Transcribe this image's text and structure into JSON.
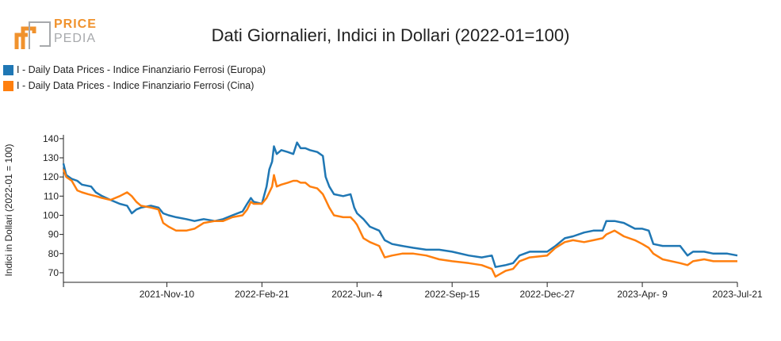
{
  "logo": {
    "line1": "PRICE",
    "line2": "PEDIA",
    "color_orange": "#f0922d",
    "color_gray": "#a7a9ac"
  },
  "chart_data": {
    "type": "line",
    "title": "Dati Giornalieri, Indici in Dollari (2022-01=100)",
    "xlabel": "",
    "ylabel": "Indici in Dollari (2022-01 = 100)",
    "ylim": [
      65,
      142
    ],
    "yticks": [
      70,
      80,
      90,
      100,
      110,
      120,
      130,
      140
    ],
    "xrange": [
      "2021-07-21",
      "2023-07-21"
    ],
    "xticks": [
      "2021-Nov-10",
      "2022-Feb-21",
      "2022-Jun- 4",
      "2022-Sep-15",
      "2022-Dec-27",
      "2023-Apr- 9",
      "2023-Jul-21"
    ],
    "xtick_dates": [
      "2021-11-10",
      "2022-02-21",
      "2022-06-04",
      "2022-09-15",
      "2022-12-27",
      "2023-04-09",
      "2023-07-21"
    ],
    "grid": false,
    "legend_position": "top-left",
    "series": [
      {
        "name": "I - Daily Data Prices - Indice Finanziario Ferrosi (Europa)",
        "color": "#1f77b4",
        "points": [
          [
            "2021-07-21",
            127
          ],
          [
            "2021-07-24",
            121
          ],
          [
            "2021-07-30",
            119
          ],
          [
            "2021-08-05",
            118
          ],
          [
            "2021-08-10",
            116
          ],
          [
            "2021-08-20",
            115
          ],
          [
            "2021-08-25",
            112
          ],
          [
            "2021-09-01",
            110
          ],
          [
            "2021-09-10",
            108
          ],
          [
            "2021-09-20",
            106
          ],
          [
            "2021-09-28",
            105
          ],
          [
            "2021-10-03",
            101
          ],
          [
            "2021-10-08",
            103
          ],
          [
            "2021-10-13",
            104
          ],
          [
            "2021-10-24",
            105
          ],
          [
            "2021-11-01",
            104
          ],
          [
            "2021-11-06",
            101
          ],
          [
            "2021-11-12",
            100
          ],
          [
            "2021-11-20",
            99
          ],
          [
            "2021-12-01",
            98
          ],
          [
            "2021-12-10",
            97
          ],
          [
            "2021-12-20",
            98
          ],
          [
            "2022-01-01",
            97
          ],
          [
            "2022-01-10",
            98
          ],
          [
            "2022-01-20",
            100
          ],
          [
            "2022-01-31",
            102
          ],
          [
            "2022-02-05",
            106
          ],
          [
            "2022-02-09",
            109
          ],
          [
            "2022-02-12",
            107
          ],
          [
            "2022-02-21",
            106
          ],
          [
            "2022-02-26",
            115
          ],
          [
            "2022-03-01",
            124
          ],
          [
            "2022-03-04",
            128
          ],
          [
            "2022-03-06",
            136
          ],
          [
            "2022-03-09",
            132
          ],
          [
            "2022-03-14",
            134
          ],
          [
            "2022-03-21",
            133
          ],
          [
            "2022-03-27",
            132
          ],
          [
            "2022-03-31",
            138
          ],
          [
            "2022-04-04",
            135
          ],
          [
            "2022-04-09",
            135
          ],
          [
            "2022-04-14",
            134
          ],
          [
            "2022-04-22",
            133
          ],
          [
            "2022-04-28",
            131
          ],
          [
            "2022-05-01",
            120
          ],
          [
            "2022-05-05",
            115
          ],
          [
            "2022-05-10",
            111
          ],
          [
            "2022-05-20",
            110
          ],
          [
            "2022-05-28",
            111
          ],
          [
            "2022-06-01",
            104
          ],
          [
            "2022-06-04",
            101
          ],
          [
            "2022-06-11",
            98
          ],
          [
            "2022-06-18",
            94
          ],
          [
            "2022-06-28",
            92
          ],
          [
            "2022-07-04",
            87
          ],
          [
            "2022-07-12",
            85
          ],
          [
            "2022-07-23",
            84
          ],
          [
            "2022-08-04",
            83
          ],
          [
            "2022-08-18",
            82
          ],
          [
            "2022-09-01",
            82
          ],
          [
            "2022-09-15",
            81
          ],
          [
            "2022-10-03",
            79
          ],
          [
            "2022-10-17",
            78
          ],
          [
            "2022-10-28",
            79
          ],
          [
            "2022-11-01",
            73
          ],
          [
            "2022-11-12",
            74
          ],
          [
            "2022-11-20",
            75
          ],
          [
            "2022-11-27",
            79
          ],
          [
            "2022-12-08",
            81
          ],
          [
            "2022-12-27",
            81
          ],
          [
            "2023-01-05",
            84
          ],
          [
            "2023-01-15",
            88
          ],
          [
            "2023-01-24",
            89
          ],
          [
            "2023-02-05",
            91
          ],
          [
            "2023-02-15",
            92
          ],
          [
            "2023-02-25",
            92
          ],
          [
            "2023-03-01",
            97
          ],
          [
            "2023-03-10",
            97
          ],
          [
            "2023-03-20",
            96
          ],
          [
            "2023-04-01",
            93
          ],
          [
            "2023-04-09",
            93
          ],
          [
            "2023-04-16",
            92
          ],
          [
            "2023-04-21",
            85
          ],
          [
            "2023-05-01",
            84
          ],
          [
            "2023-05-20",
            84
          ],
          [
            "2023-05-28",
            79
          ],
          [
            "2023-06-03",
            81
          ],
          [
            "2023-06-15",
            81
          ],
          [
            "2023-06-25",
            80
          ],
          [
            "2023-07-10",
            80
          ],
          [
            "2023-07-21",
            79
          ]
        ]
      },
      {
        "name": "I - Daily Data Prices - Indice Finanziario Ferrosi (Cina)",
        "color": "#ff7f0e",
        "points": [
          [
            "2021-07-21",
            124
          ],
          [
            "2021-07-24",
            120
          ],
          [
            "2021-07-30",
            118
          ],
          [
            "2021-08-05",
            113
          ],
          [
            "2021-08-10",
            112
          ],
          [
            "2021-08-17",
            111
          ],
          [
            "2021-08-25",
            110
          ],
          [
            "2021-09-01",
            109
          ],
          [
            "2021-09-10",
            108
          ],
          [
            "2021-09-20",
            110
          ],
          [
            "2021-09-28",
            112
          ],
          [
            "2021-10-03",
            110
          ],
          [
            "2021-10-08",
            107
          ],
          [
            "2021-10-13",
            105
          ],
          [
            "2021-10-24",
            104
          ],
          [
            "2021-11-01",
            103
          ],
          [
            "2021-11-06",
            96
          ],
          [
            "2021-11-12",
            94
          ],
          [
            "2021-11-20",
            92
          ],
          [
            "2021-12-01",
            92
          ],
          [
            "2021-12-10",
            93
          ],
          [
            "2021-12-20",
            96
          ],
          [
            "2022-01-01",
            97
          ],
          [
            "2022-01-10",
            97
          ],
          [
            "2022-01-20",
            99
          ],
          [
            "2022-01-31",
            100
          ],
          [
            "2022-02-05",
            103
          ],
          [
            "2022-02-09",
            107
          ],
          [
            "2022-02-12",
            106
          ],
          [
            "2022-02-21",
            106
          ],
          [
            "2022-02-26",
            109
          ],
          [
            "2022-03-01",
            112
          ],
          [
            "2022-03-04",
            115
          ],
          [
            "2022-03-06",
            121
          ],
          [
            "2022-03-09",
            115
          ],
          [
            "2022-03-14",
            116
          ],
          [
            "2022-03-21",
            117
          ],
          [
            "2022-03-27",
            118
          ],
          [
            "2022-03-31",
            118
          ],
          [
            "2022-04-04",
            117
          ],
          [
            "2022-04-09",
            117
          ],
          [
            "2022-04-14",
            115
          ],
          [
            "2022-04-22",
            114
          ],
          [
            "2022-04-28",
            111
          ],
          [
            "2022-05-01",
            108
          ],
          [
            "2022-05-05",
            104
          ],
          [
            "2022-05-10",
            100
          ],
          [
            "2022-05-20",
            99
          ],
          [
            "2022-05-28",
            99
          ],
          [
            "2022-06-01",
            97
          ],
          [
            "2022-06-04",
            95
          ],
          [
            "2022-06-11",
            88
          ],
          [
            "2022-06-18",
            86
          ],
          [
            "2022-06-28",
            84
          ],
          [
            "2022-07-04",
            78
          ],
          [
            "2022-07-12",
            79
          ],
          [
            "2022-07-23",
            80
          ],
          [
            "2022-08-04",
            80
          ],
          [
            "2022-08-18",
            79
          ],
          [
            "2022-09-01",
            77
          ],
          [
            "2022-09-15",
            76
          ],
          [
            "2022-10-03",
            75
          ],
          [
            "2022-10-17",
            74
          ],
          [
            "2022-10-28",
            72
          ],
          [
            "2022-11-01",
            68
          ],
          [
            "2022-11-12",
            71
          ],
          [
            "2022-11-20",
            72
          ],
          [
            "2022-11-27",
            76
          ],
          [
            "2022-12-08",
            78
          ],
          [
            "2022-12-27",
            79
          ],
          [
            "2023-01-05",
            83
          ],
          [
            "2023-01-15",
            86
          ],
          [
            "2023-01-24",
            87
          ],
          [
            "2023-02-05",
            86
          ],
          [
            "2023-02-15",
            87
          ],
          [
            "2023-02-25",
            88
          ],
          [
            "2023-03-01",
            90
          ],
          [
            "2023-03-10",
            92
          ],
          [
            "2023-03-20",
            89
          ],
          [
            "2023-04-01",
            87
          ],
          [
            "2023-04-09",
            85
          ],
          [
            "2023-04-16",
            83
          ],
          [
            "2023-04-21",
            80
          ],
          [
            "2023-05-01",
            77
          ],
          [
            "2023-05-20",
            75
          ],
          [
            "2023-05-28",
            74
          ],
          [
            "2023-06-03",
            76
          ],
          [
            "2023-06-15",
            77
          ],
          [
            "2023-06-25",
            76
          ],
          [
            "2023-07-10",
            76
          ],
          [
            "2023-07-21",
            76
          ]
        ]
      }
    ]
  }
}
